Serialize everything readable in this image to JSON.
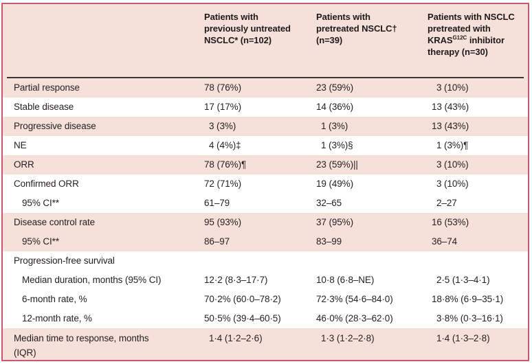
{
  "colors": {
    "frame_border": "#c25a70",
    "pink_fill": "#f6e0da",
    "header_rule": "#3b3434",
    "text": "#262121"
  },
  "table": {
    "header": {
      "col1": "",
      "col2": "Patients with previously untreated NSCLC* (n=102)",
      "col3": "Patients with pretreated NSCLC† (n=39)",
      "col4_pre": "Patients with NSCLC pretreated with KRAS",
      "col4_sup": "G12C",
      "col4_post": " inhibitor therapy (n=30)"
    },
    "rows": [
      {
        "label": "Partial response",
        "values": [
          "78 (76%)",
          "23 (59%)",
          "3 (10%)"
        ]
      },
      {
        "label": "Stable disease",
        "values": [
          "17 (17%)",
          "14 (36%)",
          "13 (43%)"
        ]
      },
      {
        "label": "Progressive disease",
        "values": [
          "3 (3%)",
          "1 (3%)",
          "13 (43%)"
        ]
      },
      {
        "label": "NE",
        "values": [
          "4 (4%)‡",
          "1 (3%)§",
          "1 (3%)¶"
        ]
      },
      {
        "label": "ORR",
        "values": [
          "78 (76%)¶",
          "23 (59%)||",
          "3 (10%)"
        ]
      },
      {
        "label": "Confirmed ORR",
        "values": [
          "72 (71%)",
          "19 (49%)",
          "3 (10%)"
        ]
      },
      {
        "label": "95% CI**",
        "values": [
          "61–79",
          "32–65",
          "2–27"
        ]
      },
      {
        "label": "Disease control rate",
        "values": [
          "95 (93%)",
          "37 (95%)",
          "16 (53%)"
        ]
      },
      {
        "label": "95% CI**",
        "values": [
          "86–97",
          "83–99",
          "36–74"
        ]
      },
      {
        "label": "Progression-free survival",
        "values": [
          "",
          "",
          ""
        ]
      },
      {
        "label": "Median duration, months (95% CI)",
        "values": [
          "12·2 (8·3–17·7)",
          "10·8 (6·8–NE)",
          "2·5 (1·3–4·1)"
        ]
      },
      {
        "label": "6-month rate, %",
        "values": [
          "70·2% (60·0–78·2)",
          "72·3% (54·6–84·0)",
          "18·8% (6·9–35·1)"
        ]
      },
      {
        "label": "12-month rate, %",
        "values": [
          "50·5% (39·4–60·5)",
          "46·0% (28·3–62·0)",
          "3·8% (0·3–16·1)"
        ]
      },
      {
        "label": "Median time to response, months (IQR)",
        "values": [
          "1·4 (1·2–2·6)",
          "1·3 (1·2–2·8)",
          "1·4 (1·3–2·8)"
        ]
      }
    ]
  }
}
